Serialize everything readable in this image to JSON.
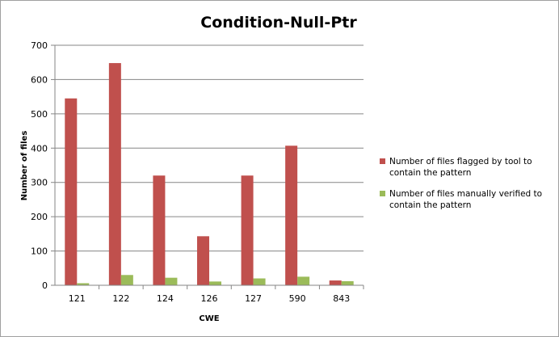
{
  "chart_data": {
    "type": "bar",
    "title": "Condition-Null-Ptr",
    "xlabel": "CWE",
    "ylabel": "Number of files",
    "categories": [
      "121",
      "122",
      "124",
      "126",
      "127",
      "590",
      "843"
    ],
    "series": [
      {
        "name": "Number of files flagged by tool to contain the pattern",
        "color": "#c0504d",
        "values": [
          545,
          648,
          320,
          143,
          320,
          407,
          14
        ]
      },
      {
        "name": "Number of files manually verified to contain the pattern",
        "color": "#9bbb59",
        "values": [
          6,
          30,
          22,
          11,
          20,
          25,
          12
        ]
      }
    ],
    "ylim": [
      0,
      700
    ],
    "yticks": [
      0,
      100,
      200,
      300,
      400,
      500,
      600,
      700
    ],
    "grid": true,
    "legend_position": "right"
  }
}
